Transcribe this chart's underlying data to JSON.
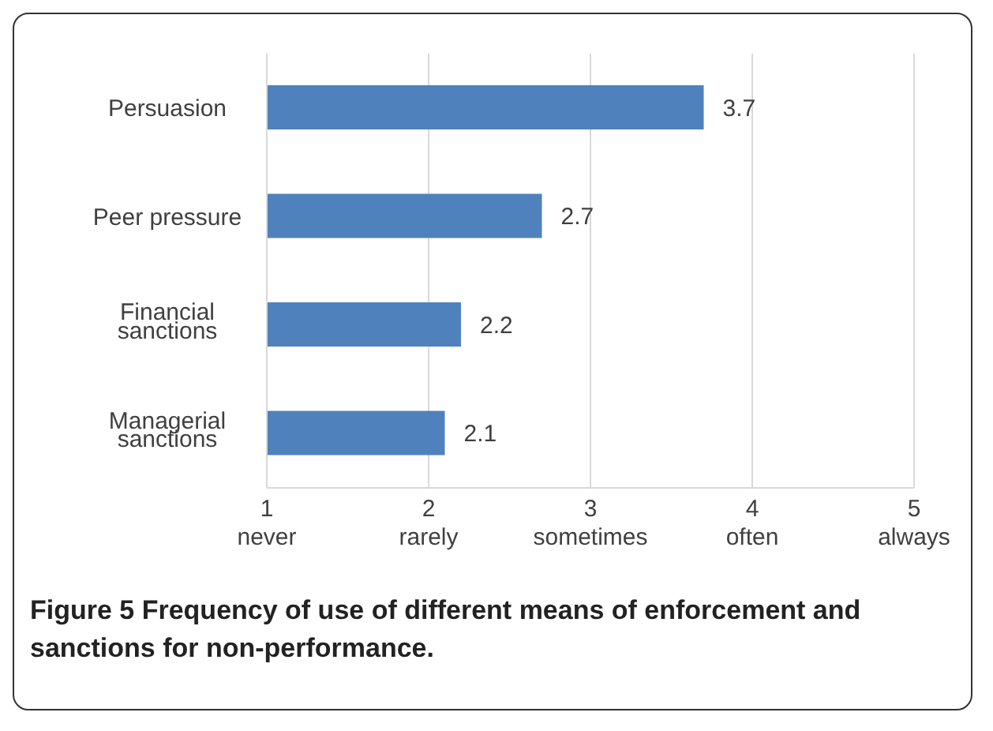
{
  "chart_data": {
    "type": "bar",
    "orientation": "horizontal",
    "title": "Figure 5 Frequency of use of different means of enforcement and sanctions for non-performance.",
    "categories": [
      "Persuasion",
      "Peer pressure",
      "Financial sanctions",
      "Managerial sanctions"
    ],
    "values": [
      3.7,
      2.7,
      2.2,
      2.1
    ],
    "color": "#4f81bd",
    "data_labels": true,
    "xlim": [
      1,
      5
    ],
    "xticks": [
      {
        "value": 1,
        "label": "1\nnever"
      },
      {
        "value": 2,
        "label": "2\nrarely"
      },
      {
        "value": 3,
        "label": "3\nsometimes"
      },
      {
        "value": 4,
        "label": "4\noften"
      },
      {
        "value": 5,
        "label": "5\nalways"
      }
    ],
    "grid": "x"
  }
}
